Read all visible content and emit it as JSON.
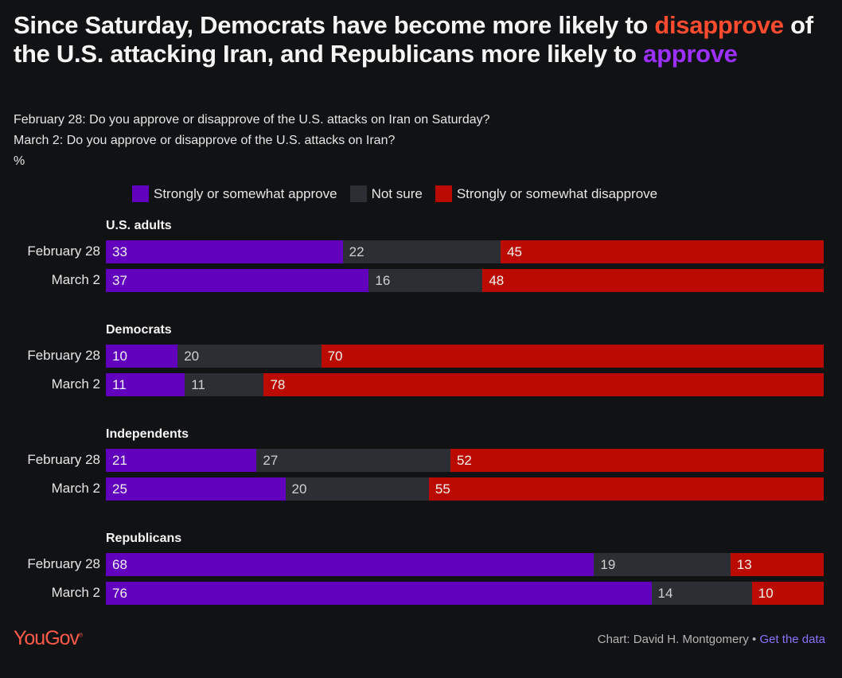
{
  "title": {
    "part1": "Since Saturday, Democrats have become more likely to ",
    "highlight_disapprove": "disapprove",
    "part2": " of the U.S. attacking Iran, and Republicans more likely to ",
    "highlight_approve": "approve"
  },
  "subtitle": {
    "line1": "February 28: Do you approve or disapprove of the U.S. attacks on Iran on Saturday?",
    "line2": "March 2: Do you approve or disapprove of the U.S. attacks on Iran?",
    "unit": "%"
  },
  "colors": {
    "approve": "#6100bd",
    "not_sure": "#2b2f33",
    "disapprove": "#bb0a00",
    "accent_disapprove": "#ff4b2f",
    "accent_approve": "#9b30ff"
  },
  "chart_data": {
    "type": "bar",
    "stacked": true,
    "orientation": "horizontal",
    "unit": "%",
    "legend": [
      "Strongly or somewhat approve",
      "Not sure",
      "Strongly or somewhat disapprove"
    ],
    "legend_position": "top",
    "groups": [
      {
        "name": "U.S. adults",
        "rows": [
          {
            "label": "February 28",
            "values": [
              33,
              22,
              45
            ]
          },
          {
            "label": "March 2",
            "values": [
              37,
              16,
              48
            ]
          }
        ]
      },
      {
        "name": "Democrats",
        "rows": [
          {
            "label": "February 28",
            "values": [
              10,
              20,
              70
            ]
          },
          {
            "label": "March 2",
            "values": [
              11,
              11,
              78
            ]
          }
        ]
      },
      {
        "name": "Independents",
        "rows": [
          {
            "label": "February 28",
            "values": [
              21,
              27,
              52
            ]
          },
          {
            "label": "March 2",
            "values": [
              25,
              20,
              55
            ]
          }
        ]
      },
      {
        "name": "Republicans",
        "rows": [
          {
            "label": "February 28",
            "values": [
              68,
              19,
              13
            ]
          },
          {
            "label": "March 2",
            "values": [
              76,
              14,
              10
            ]
          }
        ]
      }
    ]
  },
  "footer": {
    "logo": "YouGov",
    "logo_mark": "®",
    "credit": "Chart: David H. Montgomery",
    "separator": "•",
    "link": "Get the data"
  }
}
